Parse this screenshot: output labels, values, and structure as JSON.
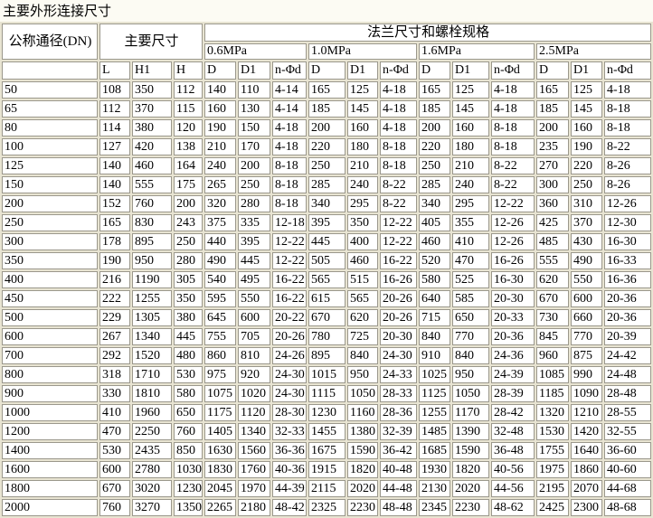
{
  "title": "主要外形连接尺寸",
  "colors": {
    "page_background": "#fcfbf3",
    "grid_gap": "#e8e4d2",
    "cell_background": "#ffffff",
    "cell_border": "#9b988c",
    "text": "#000000"
  },
  "table": {
    "header": {
      "dn": "公称通径(DN)",
      "main_dims": "主要尺寸",
      "flange_spec": "法兰尺寸和螺栓规格",
      "pressures": [
        "0.6MPa",
        "1.0MPa",
        "1.6MPa",
        "2.5MPa"
      ],
      "sub": [
        "L",
        "H1",
        "H",
        "D",
        "D1",
        "n-Φd",
        "D",
        "D1",
        "n-Φd",
        "D",
        "D1",
        "n-Φd",
        "D",
        "D1",
        "n-Φd"
      ]
    },
    "rows": [
      [
        "50",
        "108",
        "350",
        "112",
        "140",
        "110",
        "4-14",
        "165",
        "125",
        "4-18",
        "165",
        "125",
        "4-18",
        "165",
        "125",
        "4-18"
      ],
      [
        "65",
        "112",
        "370",
        "115",
        "160",
        "130",
        "4-14",
        "185",
        "145",
        "4-18",
        "185",
        "145",
        "4-18",
        "185",
        "145",
        "8-18"
      ],
      [
        "80",
        "114",
        "380",
        "120",
        "190",
        "150",
        "4-18",
        "200",
        "160",
        "4-18",
        "200",
        "160",
        "8-18",
        "200",
        "160",
        "8-18"
      ],
      [
        "100",
        "127",
        "420",
        "138",
        "210",
        "170",
        "4-18",
        "220",
        "180",
        "8-18",
        "220",
        "180",
        "8-18",
        "235",
        "190",
        "8-22"
      ],
      [
        "125",
        "140",
        "460",
        "164",
        "240",
        "200",
        "8-18",
        "250",
        "210",
        "8-18",
        "250",
        "210",
        "8-22",
        "270",
        "220",
        "8-26"
      ],
      [
        "150",
        "140",
        "555",
        "175",
        "265",
        "250",
        "8-18",
        "285",
        "240",
        "8-22",
        "285",
        "240",
        "8-22",
        "300",
        "250",
        "8-26"
      ],
      [
        "200",
        "152",
        "760",
        "200",
        "320",
        "280",
        "8-18",
        "340",
        "295",
        "8-22",
        "340",
        "295",
        "12-22",
        "360",
        "310",
        "12-26"
      ],
      [
        "250",
        "165",
        "830",
        "243",
        "375",
        "335",
        "12-18",
        "395",
        "350",
        "12-22",
        "405",
        "355",
        "12-26",
        "425",
        "370",
        "12-30"
      ],
      [
        "300",
        "178",
        "895",
        "250",
        "440",
        "395",
        "12-22",
        "445",
        "400",
        "12-22",
        "460",
        "410",
        "12-26",
        "485",
        "430",
        "16-30"
      ],
      [
        "350",
        "190",
        "950",
        "280",
        "490",
        "445",
        "12-22",
        "505",
        "460",
        "16-22",
        "520",
        "470",
        "16-26",
        "555",
        "490",
        "16-33"
      ],
      [
        "400",
        "216",
        "1190",
        "305",
        "540",
        "495",
        "16-22",
        "565",
        "515",
        "16-26",
        "580",
        "525",
        "16-30",
        "620",
        "550",
        "16-36"
      ],
      [
        "450",
        "222",
        "1255",
        "350",
        "595",
        "550",
        "16-22",
        "615",
        "565",
        "20-26",
        "640",
        "585",
        "20-30",
        "670",
        "600",
        "20-36"
      ],
      [
        "500",
        "229",
        "1305",
        "380",
        "645",
        "600",
        "20-22",
        "670",
        "620",
        "20-26",
        "715",
        "650",
        "20-33",
        "730",
        "660",
        "20-36"
      ],
      [
        "600",
        "267",
        "1340",
        "445",
        "755",
        "705",
        "20-26",
        "780",
        "725",
        "20-30",
        "840",
        "770",
        "20-36",
        "845",
        "770",
        "20-39"
      ],
      [
        "700",
        "292",
        "1520",
        "480",
        "860",
        "810",
        "24-26",
        "895",
        "840",
        "24-30",
        "910",
        "840",
        "24-36",
        "960",
        "875",
        "24-42"
      ],
      [
        "800",
        "318",
        "1710",
        "530",
        "975",
        "920",
        "24-30",
        "1015",
        "950",
        "24-33",
        "1025",
        "950",
        "24-39",
        "1085",
        "990",
        "24-48"
      ],
      [
        "900",
        "330",
        "1810",
        "580",
        "1075",
        "1020",
        "24-30",
        "1115",
        "1050",
        "28-33",
        "1125",
        "1050",
        "28-39",
        "1185",
        "1090",
        "28-48"
      ],
      [
        "1000",
        "410",
        "1960",
        "650",
        "1175",
        "1120",
        "28-30",
        "1230",
        "1160",
        "28-36",
        "1255",
        "1170",
        "28-42",
        "1320",
        "1210",
        "28-55"
      ],
      [
        "1200",
        "470",
        "2250",
        "760",
        "1405",
        "1340",
        "32-33",
        "1455",
        "1380",
        "32-39",
        "1485",
        "1390",
        "32-48",
        "1530",
        "1420",
        "32-55"
      ],
      [
        "1400",
        "530",
        "2435",
        "850",
        "1630",
        "1560",
        "36-36",
        "1675",
        "1590",
        "36-42",
        "1685",
        "1590",
        "36-48",
        "1755",
        "1640",
        "36-60"
      ],
      [
        "1600",
        "600",
        "2780",
        "1030",
        "1830",
        "1760",
        "40-36",
        "1915",
        "1820",
        "40-48",
        "1930",
        "1820",
        "40-56",
        "1975",
        "1860",
        "40-60"
      ],
      [
        "1800",
        "670",
        "3020",
        "1230",
        "2045",
        "1970",
        "44-39",
        "2115",
        "2020",
        "44-48",
        "2130",
        "2020",
        "44-56",
        "2195",
        "2070",
        "44-68"
      ],
      [
        "2000",
        "760",
        "3270",
        "1350",
        "2265",
        "2180",
        "48-42",
        "2325",
        "2230",
        "48-48",
        "2345",
        "2230",
        "48-62",
        "2425",
        "2300",
        "48-68"
      ]
    ]
  }
}
